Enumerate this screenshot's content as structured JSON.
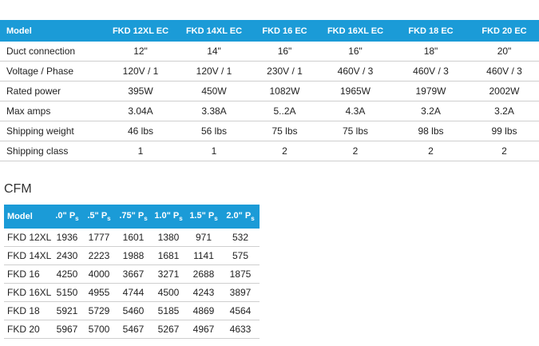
{
  "specs": {
    "header": [
      "Model",
      "FKD 12XL EC",
      "FKD 14XL EC",
      "FKD 16 EC",
      "FKD 16XL EC",
      "FKD 18 EC",
      "FKD 20 EC"
    ],
    "rows": [
      [
        "Duct connection",
        "12\"",
        "14\"",
        "16\"",
        "16\"",
        "18\"",
        "20\""
      ],
      [
        "Voltage / Phase",
        "120V / 1",
        "120V / 1",
        "230V / 1",
        "460V / 3",
        "460V / 3",
        "460V / 3"
      ],
      [
        "Rated power",
        "395W",
        "450W",
        "1082W",
        "1965W",
        "1979W",
        "2002W"
      ],
      [
        "Max amps",
        "3.04A",
        "3.38A",
        "5..2A",
        "4.3A",
        "3.2A",
        "3.2A"
      ],
      [
        "Shipping weight",
        "46 lbs",
        "56 lbs",
        "75 lbs",
        "75 lbs",
        "98 lbs",
        "99 lbs"
      ],
      [
        "Shipping class",
        "1",
        "1",
        "2",
        "2",
        "2",
        "2"
      ]
    ]
  },
  "cfm": {
    "title": "CFM",
    "header": [
      {
        "text": "Model"
      },
      {
        "text": ".0\" P",
        "sub": "s"
      },
      {
        "text": ".5\" P",
        "sub": "s"
      },
      {
        "text": ".75\" P",
        "sub": "s"
      },
      {
        "text": "1.0\" P",
        "sub": "s"
      },
      {
        "text": "1.5\" P",
        "sub": "s"
      },
      {
        "text": "2.0\" P",
        "sub": "s"
      }
    ],
    "rows": [
      [
        "FKD 12XL",
        "1936",
        "1777",
        "1601",
        "1380",
        "971",
        "532"
      ],
      [
        "FKD 14XL",
        "2430",
        "2223",
        "1988",
        "1681",
        "1141",
        "575"
      ],
      [
        "FKD 16",
        "4250",
        "4000",
        "3667",
        "3271",
        "2688",
        "1875"
      ],
      [
        "FKD 16XL",
        "5150",
        "4955",
        "4744",
        "4500",
        "4243",
        "3897"
      ],
      [
        "FKD 18",
        "5921",
        "5729",
        "5460",
        "5185",
        "4869",
        "4564"
      ],
      [
        "FKD 20",
        "5967",
        "5700",
        "5467",
        "5267",
        "4967",
        "4633"
      ]
    ]
  }
}
